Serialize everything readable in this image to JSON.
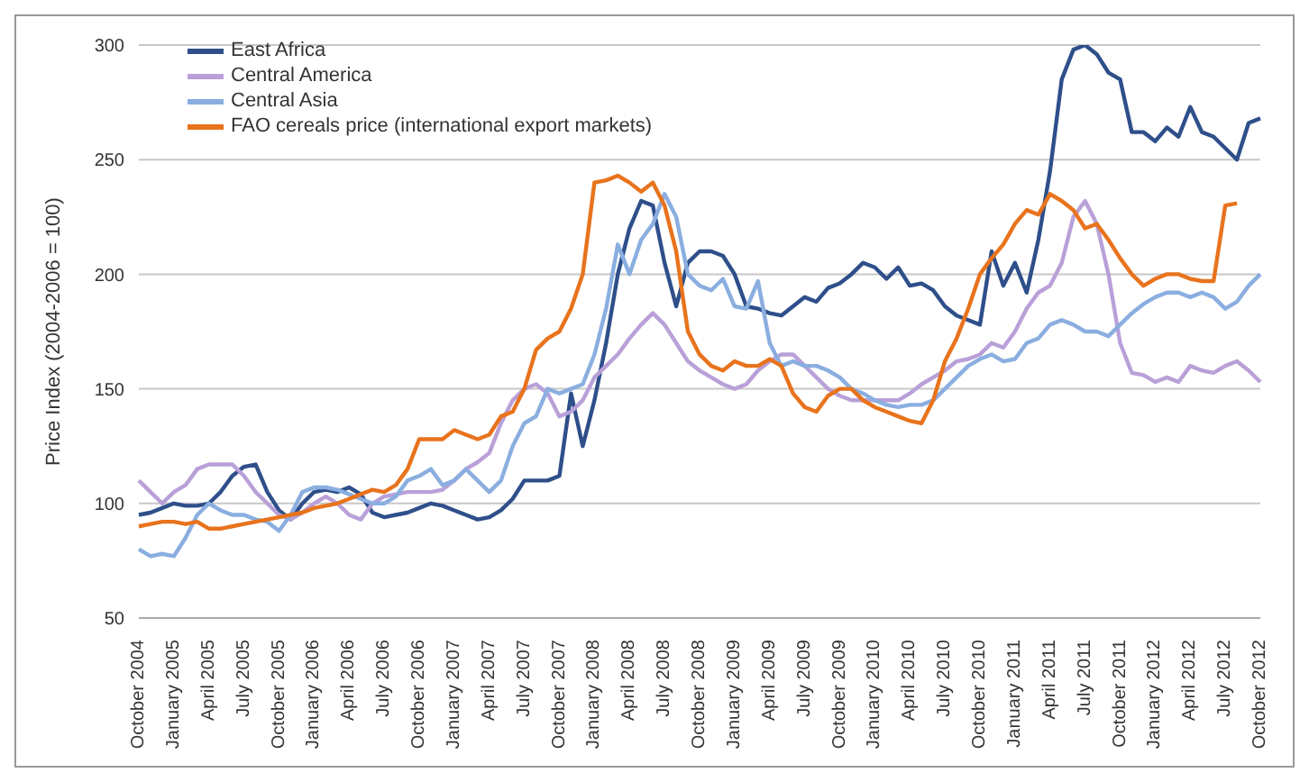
{
  "chart_data": {
    "type": "line",
    "ylabel": "Price Index (2004-2006 = 100)",
    "categories": [
      "October 2004",
      null,
      null,
      "January 2005",
      null,
      null,
      "April 2005",
      null,
      null,
      "July 2005",
      null,
      null,
      "October 2005",
      null,
      null,
      "January 2006",
      null,
      null,
      "April 2006",
      null,
      null,
      "July 2006",
      null,
      null,
      "October 2006",
      null,
      null,
      "January 2007",
      null,
      null,
      "April 2007",
      null,
      null,
      "July 2007",
      null,
      null,
      "October 2007",
      null,
      null,
      "January 2008",
      null,
      null,
      "April 2008",
      null,
      null,
      "July 2008",
      null,
      null,
      "October 2008",
      null,
      null,
      "January 2009",
      null,
      null,
      "April 2009",
      null,
      null,
      "July 2009",
      null,
      null,
      "October 2009",
      null,
      null,
      "January 2010",
      null,
      null,
      "April 2010",
      null,
      null,
      "July 2010",
      null,
      null,
      "October 2010",
      null,
      null,
      "January 2011",
      null,
      null,
      "April 2011",
      null,
      null,
      "July 2011",
      null,
      null,
      "October 2011",
      null,
      null,
      "January 2012",
      null,
      null,
      "April 2012",
      null,
      null,
      "July 2012",
      null,
      null,
      "October 2012"
    ],
    "series": [
      {
        "name": "East Africa",
        "color": "#2e4f8a",
        "values": [
          95,
          96,
          98,
          100,
          99,
          99,
          100,
          105,
          112,
          116,
          117,
          105,
          97,
          93,
          100,
          105,
          106,
          105,
          107,
          104,
          96,
          94,
          95,
          96,
          98,
          100,
          99,
          97,
          95,
          93,
          94,
          97,
          102,
          110,
          110,
          110,
          112,
          148,
          125,
          145,
          170,
          200,
          220,
          232,
          230,
          205,
          186,
          205,
          210,
          210,
          208,
          200,
          186,
          185,
          183,
          182,
          186,
          190,
          188,
          194,
          196,
          200,
          205,
          203,
          198,
          203,
          195,
          196,
          193,
          186,
          182,
          180,
          178,
          210,
          195,
          205,
          192,
          215,
          245,
          285,
          298,
          300,
          296,
          288,
          285,
          262,
          262,
          258,
          264,
          260,
          273,
          262,
          260,
          255,
          250,
          266,
          268
        ]
      },
      {
        "name": "Central America",
        "color": "#b9a0d8",
        "values": [
          110,
          105,
          100,
          105,
          108,
          115,
          117,
          117,
          117,
          112,
          105,
          100,
          95,
          93,
          96,
          100,
          103,
          100,
          95,
          93,
          100,
          103,
          104,
          105,
          105,
          105,
          106,
          110,
          115,
          118,
          122,
          135,
          145,
          150,
          152,
          148,
          138,
          140,
          145,
          155,
          160,
          165,
          172,
          178,
          183,
          178,
          170,
          162,
          158,
          155,
          152,
          150,
          152,
          158,
          162,
          165,
          165,
          160,
          155,
          150,
          147,
          145,
          145,
          145,
          145,
          145,
          148,
          152,
          155,
          158,
          162,
          163,
          165,
          170,
          168,
          175,
          185,
          192,
          195,
          205,
          225,
          232,
          222,
          200,
          170,
          157,
          156,
          153,
          155,
          153,
          160,
          158,
          157,
          160,
          162,
          158,
          153
        ]
      },
      {
        "name": "Central Asia",
        "color": "#8aaee0",
        "values": [
          80,
          77,
          78,
          77,
          85,
          95,
          100,
          97,
          95,
          95,
          93,
          92,
          88,
          95,
          105,
          107,
          107,
          106,
          104,
          102,
          100,
          100,
          103,
          110,
          112,
          115,
          108,
          110,
          115,
          110,
          105,
          110,
          125,
          135,
          138,
          150,
          148,
          150,
          152,
          165,
          185,
          213,
          200,
          215,
          222,
          235,
          225,
          200,
          195,
          193,
          198,
          186,
          185,
          197,
          170,
          160,
          162,
          160,
          160,
          158,
          155,
          150,
          148,
          145,
          143,
          142,
          143,
          143,
          145,
          150,
          155,
          160,
          163,
          165,
          162,
          163,
          170,
          172,
          178,
          180,
          178,
          175,
          175,
          173,
          178,
          183,
          187,
          190,
          192,
          192,
          190,
          192,
          190,
          185,
          188,
          195,
          200
        ]
      },
      {
        "name": "FAO cereals price (international export markets)",
        "color": "#e8731d",
        "values": [
          90,
          91,
          92,
          92,
          91,
          92,
          89,
          89,
          90,
          91,
          92,
          93,
          94,
          95,
          96,
          98,
          99,
          100,
          102,
          104,
          106,
          105,
          108,
          115,
          128,
          128,
          128,
          132,
          130,
          128,
          130,
          138,
          140,
          150,
          167,
          172,
          175,
          185,
          200,
          240,
          241,
          243,
          240,
          236,
          240,
          230,
          210,
          175,
          165,
          160,
          158,
          162,
          160,
          160,
          163,
          160,
          148,
          142,
          140,
          147,
          150,
          150,
          145,
          142,
          140,
          138,
          136,
          135,
          145,
          162,
          172,
          185,
          200,
          207,
          213,
          222,
          228,
          226,
          235,
          232,
          228,
          220,
          222,
          215,
          207,
          200,
          195,
          198,
          200,
          200,
          198,
          197,
          197,
          230,
          231,
          null,
          null
        ]
      }
    ],
    "ylim": [
      50,
      300
    ],
    "yticks": [
      50,
      100,
      150,
      200,
      250,
      300
    ],
    "grid": "y",
    "legend": "top left"
  }
}
